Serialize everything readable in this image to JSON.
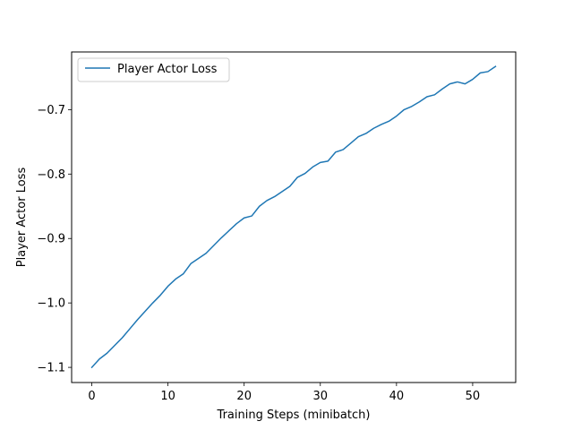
{
  "chart_data": {
    "type": "line",
    "title": "",
    "xlabel": "Training Steps (minibatch)",
    "ylabel": "Player Actor Loss",
    "xlim": [
      -2.65,
      55.65
    ],
    "ylim": [
      -1.1235,
      -0.6105
    ],
    "xticks": [
      0,
      10,
      20,
      30,
      40,
      50
    ],
    "xtick_labels": [
      "0",
      "10",
      "20",
      "30",
      "40",
      "50"
    ],
    "yticks": [
      -1.1,
      -1.0,
      -0.9,
      -0.8,
      -0.7
    ],
    "ytick_labels": [
      "−1.1",
      "−1.0",
      "−0.9",
      "−0.8",
      "−0.7"
    ],
    "grid": false,
    "legend_position": "top-left",
    "series": [
      {
        "name": "Player Actor Loss",
        "color": "#1f77b4",
        "x": [
          0,
          1,
          2,
          3,
          4,
          5,
          6,
          7,
          8,
          9,
          10,
          11,
          12,
          13,
          14,
          15,
          16,
          17,
          18,
          19,
          20,
          21,
          22,
          23,
          24,
          25,
          26,
          27,
          28,
          29,
          30,
          31,
          32,
          33,
          34,
          35,
          36,
          37,
          38,
          39,
          40,
          41,
          42,
          43,
          44,
          45,
          46,
          47,
          48,
          49,
          50,
          51,
          52,
          53
        ],
        "values": [
          -1.1,
          -1.087,
          -1.078,
          -1.066,
          -1.054,
          -1.04,
          -1.026,
          -1.013,
          -1.0,
          -0.988,
          -0.974,
          -0.963,
          -0.955,
          -0.939,
          -0.931,
          -0.923,
          -0.911,
          -0.899,
          -0.888,
          -0.877,
          -0.868,
          -0.865,
          -0.85,
          -0.841,
          -0.835,
          -0.827,
          -0.819,
          -0.805,
          -0.799,
          -0.789,
          -0.782,
          -0.78,
          -0.766,
          -0.762,
          -0.752,
          -0.742,
          -0.737,
          -0.729,
          -0.723,
          -0.718,
          -0.71,
          -0.7,
          -0.695,
          -0.688,
          -0.68,
          -0.677,
          -0.668,
          -0.66,
          -0.657,
          -0.66,
          -0.653,
          -0.643,
          -0.641,
          -0.633
        ]
      }
    ]
  }
}
